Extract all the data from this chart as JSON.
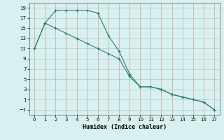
{
  "line1_x": [
    0,
    1,
    2,
    3,
    4,
    5,
    6,
    7,
    8,
    9,
    10,
    11,
    12,
    13,
    14,
    15,
    16,
    17
  ],
  "line1_y": [
    11,
    16,
    18.5,
    18.5,
    18.5,
    18.5,
    18,
    13.5,
    10.5,
    6,
    3.5,
    3.5,
    3,
    2,
    1.5,
    1,
    0.5,
    -1
  ],
  "line2_x": [
    0,
    1,
    2,
    3,
    4,
    5,
    6,
    7,
    8,
    9,
    10,
    11,
    12,
    13,
    14,
    15,
    16,
    17
  ],
  "line2_y": [
    11,
    16,
    15,
    14,
    13,
    12,
    11,
    10,
    9,
    5.5,
    3.5,
    3.5,
    3,
    2,
    1.5,
    1,
    0.5,
    -1
  ],
  "color": "#2e7d6e",
  "bg_color": "#d9f0f0",
  "grid_color_v": "#c8a0a0",
  "grid_color_h": "#b0c8c8",
  "xlabel": "Humidex (Indice chaleur)",
  "xlim": [
    -0.5,
    17.5
  ],
  "ylim": [
    -2,
    20
  ],
  "xticks": [
    0,
    1,
    2,
    3,
    4,
    5,
    6,
    7,
    8,
    9,
    10,
    11,
    12,
    13,
    14,
    15,
    16,
    17
  ],
  "yticks": [
    -1,
    1,
    3,
    5,
    7,
    9,
    11,
    13,
    15,
    17,
    19
  ]
}
